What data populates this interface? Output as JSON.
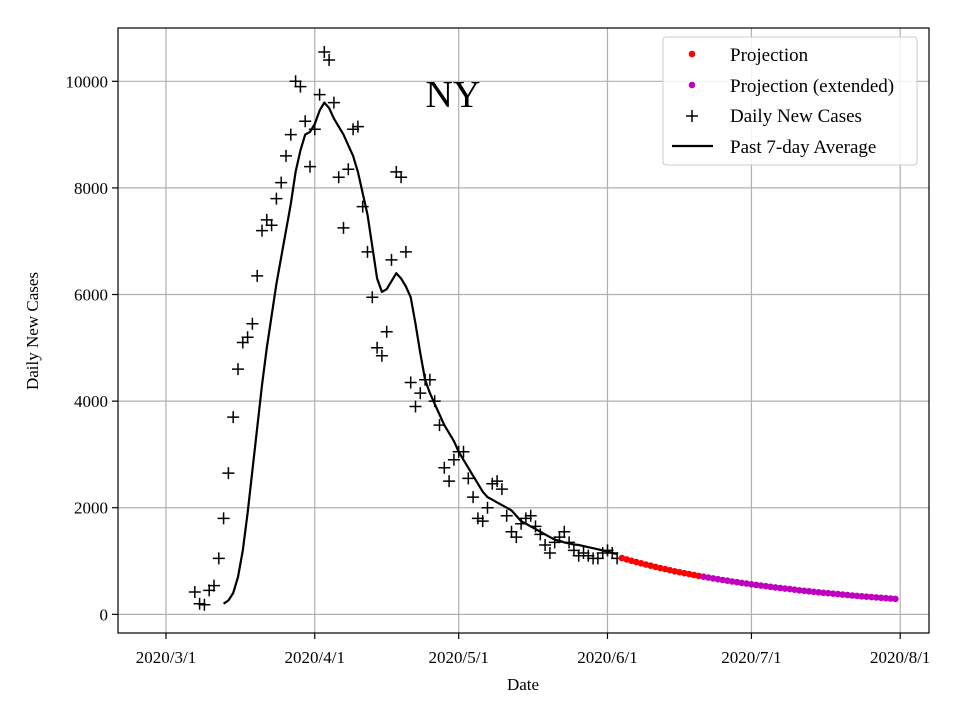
{
  "chart_data": {
    "type": "scatter",
    "title": "NY",
    "xlabel": "Date",
    "ylabel": "Daily New Cases",
    "x_tick_labels": [
      "2020/3/1",
      "2020/4/1",
      "2020/5/1",
      "2020/6/1",
      "2020/7/1",
      "2020/8/1"
    ],
    "y_tick_labels": [
      "0",
      "2000",
      "4000",
      "6000",
      "8000",
      "10000"
    ],
    "y_ticks": [
      0,
      2000,
      4000,
      6000,
      8000,
      10000
    ],
    "xlim": [
      "2020-02-20",
      "2020-08-07"
    ],
    "ylim": [
      -350,
      11000
    ],
    "grid": true,
    "legend_position": "top-right",
    "colors": {
      "projection": "#ff0000",
      "projection_extended": "#bf00bf",
      "daily": "#000000",
      "average": "#000000"
    },
    "series": [
      {
        "name": "Projection",
        "marker": "dot",
        "x": [
          "2020-06-04",
          "2020-06-05",
          "2020-06-06",
          "2020-06-07",
          "2020-06-08",
          "2020-06-09",
          "2020-06-10",
          "2020-06-11",
          "2020-06-12",
          "2020-06-13",
          "2020-06-14",
          "2020-06-15",
          "2020-06-16",
          "2020-06-17",
          "2020-06-18",
          "2020-06-19",
          "2020-06-20"
        ],
        "y": [
          1055,
          1030,
          1005,
          980,
          957,
          935,
          912,
          890,
          868,
          848,
          828,
          808,
          790,
          772,
          755,
          738,
          722
        ]
      },
      {
        "name": "Projection (extended)",
        "marker": "dot",
        "x": [
          "2020-06-21",
          "2020-06-22",
          "2020-06-23",
          "2020-06-24",
          "2020-06-25",
          "2020-06-26",
          "2020-06-27",
          "2020-06-28",
          "2020-06-29",
          "2020-06-30",
          "2020-07-01",
          "2020-07-02",
          "2020-07-03",
          "2020-07-04",
          "2020-07-05",
          "2020-07-06",
          "2020-07-07",
          "2020-07-08",
          "2020-07-09",
          "2020-07-10",
          "2020-07-11",
          "2020-07-12",
          "2020-07-13",
          "2020-07-14",
          "2020-07-15",
          "2020-07-16",
          "2020-07-17",
          "2020-07-18",
          "2020-07-19",
          "2020-07-20",
          "2020-07-21",
          "2020-07-22",
          "2020-07-23",
          "2020-07-24",
          "2020-07-25",
          "2020-07-26",
          "2020-07-27",
          "2020-07-28",
          "2020-07-29",
          "2020-07-30",
          "2020-07-31"
        ],
        "y": [
          706,
          690,
          675,
          660,
          645,
          631,
          617,
          603,
          590,
          577,
          564,
          552,
          540,
          528,
          516,
          505,
          494,
          483,
          473,
          462,
          452,
          442,
          433,
          423,
          414,
          405,
          396,
          387,
          379,
          370,
          362,
          354,
          346,
          339,
          331,
          324,
          317,
          310,
          303,
          297,
          290
        ]
      },
      {
        "name": "Daily New Cases",
        "marker": "plus",
        "x": [
          "2020-03-07",
          "2020-03-08",
          "2020-03-09",
          "2020-03-10",
          "2020-03-11",
          "2020-03-12",
          "2020-03-13",
          "2020-03-14",
          "2020-03-15",
          "2020-03-16",
          "2020-03-17",
          "2020-03-18",
          "2020-03-19",
          "2020-03-20",
          "2020-03-21",
          "2020-03-22",
          "2020-03-23",
          "2020-03-24",
          "2020-03-25",
          "2020-03-26",
          "2020-03-27",
          "2020-03-28",
          "2020-03-29",
          "2020-03-30",
          "2020-03-31",
          "2020-04-01",
          "2020-04-02",
          "2020-04-03",
          "2020-04-04",
          "2020-04-05",
          "2020-04-06",
          "2020-04-07",
          "2020-04-08",
          "2020-04-09",
          "2020-04-10",
          "2020-04-11",
          "2020-04-12",
          "2020-04-13",
          "2020-04-14",
          "2020-04-15",
          "2020-04-16",
          "2020-04-17",
          "2020-04-18",
          "2020-04-19",
          "2020-04-20",
          "2020-04-21",
          "2020-04-22",
          "2020-04-23",
          "2020-04-24",
          "2020-04-25",
          "2020-04-26",
          "2020-04-27",
          "2020-04-28",
          "2020-04-29",
          "2020-04-30",
          "2020-05-01",
          "2020-05-02",
          "2020-05-03",
          "2020-05-04",
          "2020-05-05",
          "2020-05-06",
          "2020-05-07",
          "2020-05-08",
          "2020-05-09",
          "2020-05-10",
          "2020-05-11",
          "2020-05-12",
          "2020-05-13",
          "2020-05-14",
          "2020-05-15",
          "2020-05-16",
          "2020-05-17",
          "2020-05-18",
          "2020-05-19",
          "2020-05-20",
          "2020-05-21",
          "2020-05-22",
          "2020-05-23",
          "2020-05-24",
          "2020-05-25",
          "2020-05-26",
          "2020-05-27",
          "2020-05-28",
          "2020-05-29",
          "2020-05-30",
          "2020-05-31",
          "2020-06-01",
          "2020-06-02",
          "2020-06-03"
        ],
        "y": [
          420,
          200,
          180,
          450,
          540,
          1050,
          1800,
          2650,
          3700,
          4600,
          5100,
          5200,
          5450,
          6350,
          7200,
          7400,
          7300,
          7800,
          8100,
          8600,
          9000,
          10000,
          9900,
          9250,
          8400,
          9100,
          9750,
          10550,
          10400,
          9600,
          8200,
          7250,
          8350,
          9100,
          9150,
          7650,
          6800,
          5950,
          5000,
          4850,
          5300,
          6650,
          8300,
          8200,
          6800,
          4350,
          3900,
          4150,
          4400,
          4400,
          4000,
          3550,
          2750,
          2500,
          2900,
          3050,
          3050,
          2550,
          2200,
          1800,
          1750,
          2000,
          2450,
          2500,
          2350,
          1850,
          1550,
          1450,
          1700,
          1800,
          1850,
          1650,
          1500,
          1300,
          1150,
          1350,
          1450,
          1550,
          1350,
          1200,
          1100,
          1150,
          1100,
          1050,
          1050,
          1150,
          1200,
          1150,
          1050
        ]
      },
      {
        "name": "Past 7-day Average",
        "marker": "line",
        "x": [
          "2020-03-13",
          "2020-03-14",
          "2020-03-15",
          "2020-03-16",
          "2020-03-17",
          "2020-03-18",
          "2020-03-19",
          "2020-03-20",
          "2020-03-21",
          "2020-03-22",
          "2020-03-23",
          "2020-03-24",
          "2020-03-25",
          "2020-03-26",
          "2020-03-27",
          "2020-03-28",
          "2020-03-29",
          "2020-03-30",
          "2020-03-31",
          "2020-04-01",
          "2020-04-02",
          "2020-04-03",
          "2020-04-04",
          "2020-04-05",
          "2020-04-06",
          "2020-04-07",
          "2020-04-08",
          "2020-04-09",
          "2020-04-10",
          "2020-04-11",
          "2020-04-12",
          "2020-04-13",
          "2020-04-14",
          "2020-04-15",
          "2020-04-16",
          "2020-04-17",
          "2020-04-18",
          "2020-04-19",
          "2020-04-20",
          "2020-04-21",
          "2020-04-22",
          "2020-04-23",
          "2020-04-24",
          "2020-04-25",
          "2020-04-26",
          "2020-04-27",
          "2020-04-28",
          "2020-04-29",
          "2020-04-30",
          "2020-05-01",
          "2020-05-02",
          "2020-05-03",
          "2020-05-04",
          "2020-05-05",
          "2020-05-06",
          "2020-05-07",
          "2020-05-08",
          "2020-05-09",
          "2020-05-10",
          "2020-05-11",
          "2020-05-12",
          "2020-05-13",
          "2020-05-14",
          "2020-05-15",
          "2020-05-16",
          "2020-05-17",
          "2020-05-18",
          "2020-05-19",
          "2020-05-20",
          "2020-05-21",
          "2020-05-22",
          "2020-05-23",
          "2020-05-24",
          "2020-05-25",
          "2020-05-26",
          "2020-05-27",
          "2020-05-28",
          "2020-05-29",
          "2020-05-30",
          "2020-05-31",
          "2020-06-01",
          "2020-06-02",
          "2020-06-03"
        ],
        "y": [
          200,
          260,
          400,
          700,
          1200,
          1900,
          2700,
          3500,
          4300,
          5000,
          5600,
          6200,
          6700,
          7200,
          7700,
          8300,
          8700,
          9000,
          9050,
          9200,
          9450,
          9600,
          9500,
          9300,
          9150,
          9000,
          8800,
          8600,
          8300,
          7900,
          7500,
          6900,
          6300,
          6050,
          6100,
          6250,
          6400,
          6300,
          6150,
          5950,
          5450,
          4900,
          4400,
          4150,
          3950,
          3750,
          3550,
          3400,
          3250,
          3050,
          2900,
          2750,
          2600,
          2450,
          2300,
          2200,
          2150,
          2100,
          2050,
          2000,
          1950,
          1850,
          1750,
          1700,
          1650,
          1600,
          1550,
          1500,
          1450,
          1400,
          1380,
          1350,
          1330,
          1310,
          1300,
          1280,
          1260,
          1240,
          1220,
          1200,
          1180,
          1150,
          1130
        ]
      }
    ]
  }
}
